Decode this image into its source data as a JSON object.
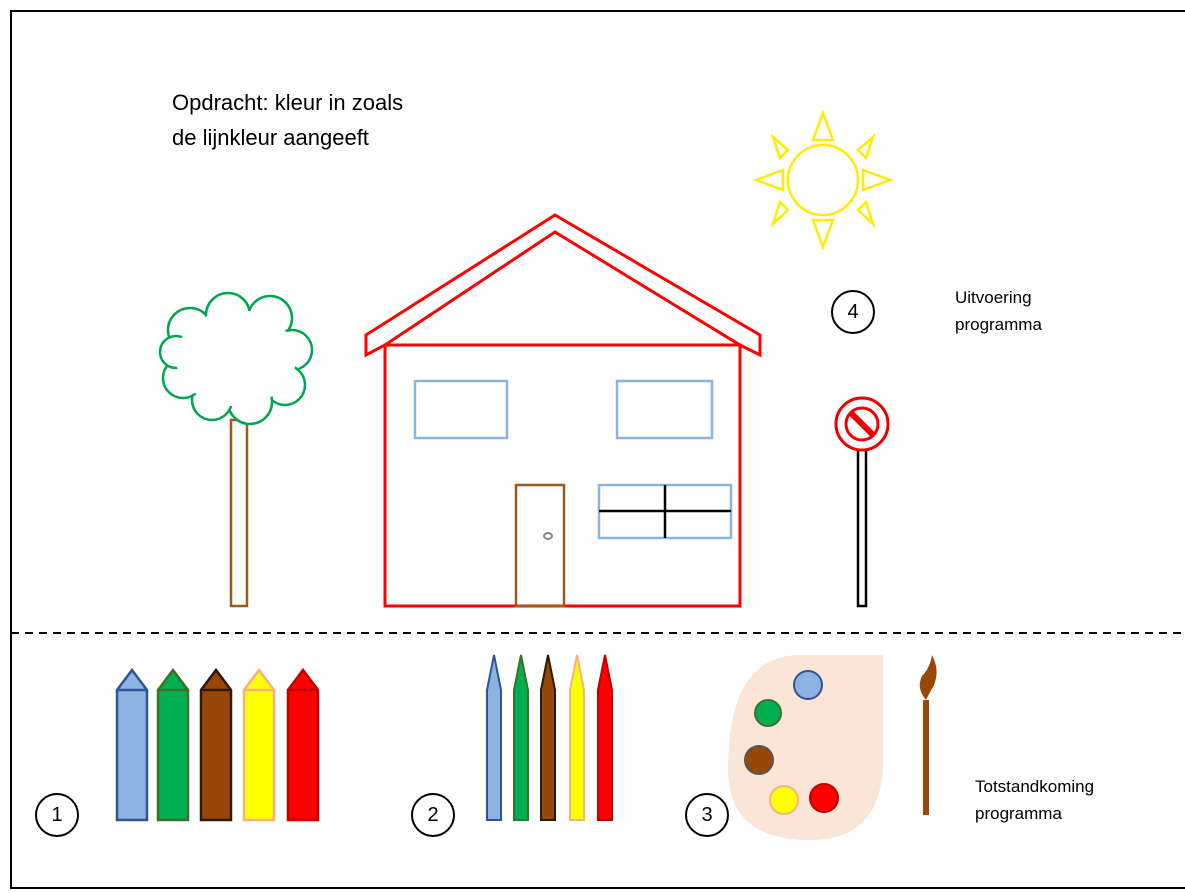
{
  "instruction": {
    "lines": [
      "Opdracht: kleur in zoals",
      "de lijnkleur aangeeft"
    ]
  },
  "steps": [
    "1",
    "2",
    "3",
    "4"
  ],
  "labels": {
    "execution": [
      "Uitvoering",
      "programma"
    ],
    "creation": [
      "Totstandkoming",
      "programma"
    ]
  }
}
